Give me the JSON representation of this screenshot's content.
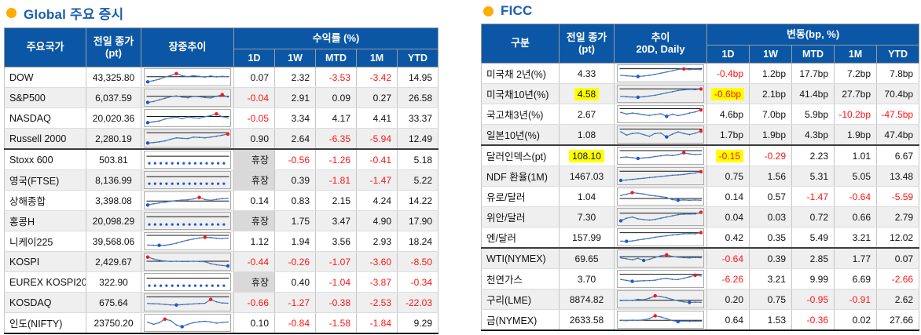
{
  "colors": {
    "header_bg": "#0b57a5",
    "title_text": "#1a5fae",
    "bullet_orange": "#ffac00",
    "negative_red": "#ff1414",
    "highlight_yellow": "#ffff00",
    "closed_gray": "#d9d9d9",
    "stripe_gray": "#efefef",
    "spark_line_blue": "#4d7ec0",
    "spark_min_dot": "#1f56cf",
    "spark_max_dot": "#ff1414"
  },
  "left_panel": {
    "title": "Global 주요 증시",
    "columns": {
      "name": "주요국가",
      "close": "전일 종가\n(pt)",
      "intraday": "장중추이",
      "group": "수익률 (%)",
      "periods": [
        "1D",
        "1W",
        "MTD",
        "1M",
        "YTD"
      ]
    },
    "rows": [
      {
        "name": "DOW",
        "close": "43,325.80",
        "values": [
          "0.07",
          "2.32",
          "-3.53",
          "-3.42",
          "14.95"
        ],
        "spark": {
          "ref": 52,
          "v": [
            8,
            18,
            30,
            48,
            62,
            78,
            60,
            52,
            60,
            55,
            48,
            58,
            50,
            55,
            52
          ]
        }
      },
      {
        "name": "S&P500",
        "close": "6,037.59",
        "values": [
          "-0.04",
          "2.91",
          "0.09",
          "0.27",
          "26.58"
        ],
        "spark": {
          "ref": 58,
          "v": [
            6,
            14,
            28,
            42,
            55,
            62,
            52,
            46,
            58,
            55,
            48,
            44,
            58,
            72,
            52
          ]
        }
      },
      {
        "name": "NASDAQ",
        "close": "20,020.36",
        "values": [
          "-0.05",
          "3.34",
          "4.17",
          "4.41",
          "33.37"
        ],
        "spark": {
          "ref": 60,
          "v": [
            8,
            15,
            22,
            38,
            48,
            55,
            42,
            56,
            50,
            46,
            58,
            68,
            82,
            58,
            48
          ]
        }
      },
      {
        "name": "Russell 2000",
        "close": "2,280.19",
        "values": [
          "0.90",
          "2.64",
          "-6.35",
          "-5.94",
          "12.49"
        ],
        "sep": true,
        "spark": {
          "ref": 96,
          "v": [
            8,
            12,
            18,
            26,
            40,
            52,
            48,
            46,
            58,
            56,
            52,
            58,
            66,
            74,
            84
          ]
        }
      },
      {
        "name": "Stoxx 600",
        "close": "503.81",
        "values": [
          "휴장",
          "-0.56",
          "-1.26",
          "-0.41",
          "5.18"
        ],
        "spark": {
          "ref": 76,
          "dotted": true
        }
      },
      {
        "name": "영국(FTSE)",
        "close": "8,136.99",
        "values": [
          "휴장",
          "0.39",
          "-1.81",
          "-1.47",
          "5.22"
        ],
        "spark": {
          "ref": 76,
          "dotted": true
        }
      },
      {
        "name": "상해종합",
        "close": "3,398.08",
        "values": [
          "0.14",
          "0.83",
          "2.15",
          "4.24",
          "14.22"
        ],
        "spark": {
          "ref": 42,
          "v": [
            8,
            18,
            26,
            32,
            40,
            46,
            50,
            52,
            60,
            72,
            54,
            48,
            56,
            62,
            64
          ]
        }
      },
      {
        "name": "홍콩H",
        "close": "20,098.29",
        "values": [
          "휴장",
          "1.75",
          "3.47",
          "4.90",
          "17.90"
        ],
        "spark": {
          "ref": 82,
          "dotted": true
        }
      },
      {
        "name": "니케이225",
        "close": "39,568.06",
        "values": [
          "1.12",
          "1.94",
          "3.56",
          "2.93",
          "18.24"
        ],
        "spark": {
          "ref": 97,
          "v": [
            14,
            13,
            12,
            12,
            20,
            30,
            44,
            56,
            66,
            74,
            80,
            78,
            72,
            70,
            73
          ]
        }
      },
      {
        "name": "KOSPI",
        "close": "2,429.67",
        "values": [
          "-0.44",
          "-0.26",
          "-1.07",
          "-3.60",
          "-8.50"
        ],
        "spark": {
          "ref": 50,
          "v": [
            85,
            70,
            58,
            52,
            48,
            50,
            48,
            48,
            50,
            48,
            46,
            30,
            20,
            14,
            10
          ]
        }
      },
      {
        "name": "EUREX KOSPI200",
        "close": "322.90",
        "values": [
          "휴장",
          "0.40",
          "-1.04",
          "-3.87",
          "-0.34"
        ],
        "spark": {
          "ref": 80,
          "dotted": true
        }
      },
      {
        "name": "KOSDAQ",
        "close": "675.64",
        "values": [
          "-0.66",
          "-1.27",
          "-0.38",
          "-2.53",
          "-22.03"
        ],
        "spark": {
          "ref": 95,
          "v": [
            38,
            36,
            34,
            30,
            26,
            25,
            28,
            32,
            34,
            37,
            40,
            72,
            52,
            42,
            40
          ]
        }
      },
      {
        "name": "인도(NIFTY)",
        "close": "23750.20",
        "values": [
          "0.10",
          "-0.84",
          "-1.58",
          "-1.84",
          "9.29"
        ],
        "spark": {
          "ref": null,
          "v": [
            52,
            34,
            48,
            78,
            66,
            28,
            14,
            34,
            48,
            56,
            60,
            54,
            44,
            50,
            54
          ]
        }
      }
    ]
  },
  "right_panel": {
    "title": "FICC",
    "columns": {
      "name": "구분",
      "close": "전일 종가\n(pt)",
      "intraday": "추이\n20D, Daily",
      "group": "변동(bp, %)",
      "periods": [
        "1D",
        "1W",
        "MTD",
        "1M",
        "YTD"
      ]
    },
    "rows": [
      {
        "name": "미국채 2년(%)",
        "close": "4.33",
        "values": [
          "-0.4bp",
          "1.2bp",
          "17.7bp",
          "7.2bp",
          "7.8bp"
        ],
        "spark": {
          "ref": 86,
          "v": [
            30,
            26,
            23,
            20,
            24,
            30,
            38,
            48,
            58,
            68,
            80,
            84,
            79,
            81,
            79
          ]
        }
      },
      {
        "name": "미국채10년(%)",
        "close": "4.58",
        "close_hl": true,
        "hl": [
          0
        ],
        "values": [
          "-0.6bp",
          "2.1bp",
          "41.4bp",
          "27.7bp",
          "70.4bp"
        ],
        "spark": {
          "ref": 88,
          "v": [
            24,
            21,
            19,
            17,
            21,
            27,
            34,
            44,
            54,
            64,
            74,
            80,
            84,
            82,
            87
          ]
        }
      },
      {
        "name": "국고채3년(%)",
        "close": "2.67",
        "values": [
          "4.6bp",
          "7.0bp",
          "5.9bp",
          "-10.2bp",
          "-47.5bp"
        ],
        "spark": {
          "ref": 93,
          "v": [
            62,
            48,
            56,
            50,
            42,
            36,
            44,
            50,
            28,
            46,
            34,
            44,
            56,
            66,
            82
          ]
        }
      },
      {
        "name": "일본10년(%)",
        "close": "1.08",
        "values": [
          "1.7bp",
          "1.9bp",
          "4.3bp",
          "1.9bp",
          "47.4bp"
        ],
        "sep": true,
        "spark": {
          "ref": 93,
          "v": [
            70,
            42,
            56,
            60,
            46,
            32,
            56,
            60,
            26,
            50,
            70,
            56,
            46,
            58,
            76
          ]
        }
      },
      {
        "name": "달러인덱스(pt)",
        "close": "108.10",
        "close_hl": true,
        "hl": [
          0
        ],
        "values": [
          "-0.15",
          "-0.29",
          "2.23",
          "1.01",
          "6.67"
        ],
        "spark": {
          "ref": 90,
          "v": [
            32,
            36,
            30,
            24,
            28,
            32,
            40,
            46,
            52,
            48,
            56,
            72,
            62,
            56,
            60
          ]
        }
      },
      {
        "name": "NDF 환율(1M)",
        "close": "1467.03",
        "values": [
          "0.75",
          "1.56",
          "5.31",
          "5.05",
          "13.48"
        ],
        "spark": {
          "ref": 88,
          "v": [
            10,
            14,
            19,
            24,
            29,
            34,
            39,
            44,
            49,
            54,
            57,
            61,
            68,
            73,
            84
          ]
        }
      },
      {
        "name": "유로/달러",
        "close": "1.04",
        "values": [
          "0.14",
          "0.57",
          "-1.47",
          "-0.64",
          "-5.59"
        ],
        "spark": {
          "ref": 30,
          "v": [
            56,
            66,
            80,
            74,
            68,
            58,
            52,
            46,
            38,
            20,
            15,
            18,
            15,
            17,
            15
          ]
        }
      },
      {
        "name": "위안/달러",
        "close": "7.30",
        "values": [
          "0.04",
          "0.03",
          "0.72",
          "0.66",
          "2.79"
        ],
        "spark": {
          "ref": 78,
          "v": [
            14,
            36,
            46,
            30,
            24,
            20,
            26,
            36,
            46,
            56,
            66,
            70,
            71,
            72,
            86
          ]
        }
      },
      {
        "name": "엔/달러",
        "close": "157.99",
        "values": [
          "0.42",
          "0.35",
          "5.49",
          "3.21",
          "12.02"
        ],
        "sep": true,
        "spark": {
          "ref": 86,
          "v": [
            14,
            13,
            16,
            24,
            31,
            39,
            47,
            54,
            60,
            67,
            71,
            77,
            79,
            77,
            87
          ]
        }
      },
      {
        "name": "WTI(NYMEX)",
        "close": "69.65",
        "values": [
          "-0.64",
          "0.39",
          "2.85",
          "1.77",
          "0.07"
        ],
        "spark": {
          "ref": 62,
          "v": [
            52,
            44,
            36,
            48,
            30,
            40,
            56,
            70,
            78,
            64,
            58,
            54,
            52,
            56,
            53
          ]
        }
      },
      {
        "name": "천연가스",
        "close": "3.70",
        "values": [
          "-6.26",
          "3.21",
          "9.99",
          "6.69",
          "-2.66"
        ],
        "spark": {
          "ref": 86,
          "v": [
            42,
            34,
            26,
            29,
            31,
            33,
            36,
            46,
            52,
            43,
            41,
            52,
            64,
            78,
            72
          ]
        }
      },
      {
        "name": "구리(LME)",
        "close": "8874.82",
        "values": [
          "0.20",
          "0.75",
          "-0.95",
          "-0.91",
          "2.62"
        ],
        "spark": {
          "ref": 38,
          "v": [
            36,
            39,
            37,
            46,
            43,
            56,
            76,
            70,
            60,
            45,
            34,
            25,
            20,
            23,
            21
          ]
        }
      },
      {
        "name": "금(NYMEX)",
        "close": "2633.58",
        "values": [
          "0.64",
          "1.53",
          "-0.36",
          "0.02",
          "27.66"
        ],
        "spark": {
          "ref": 42,
          "v": [
            41,
            39,
            43,
            41,
            46,
            56,
            80,
            70,
            55,
            40,
            30,
            36,
            33,
            35,
            34
          ]
        }
      }
    ]
  }
}
